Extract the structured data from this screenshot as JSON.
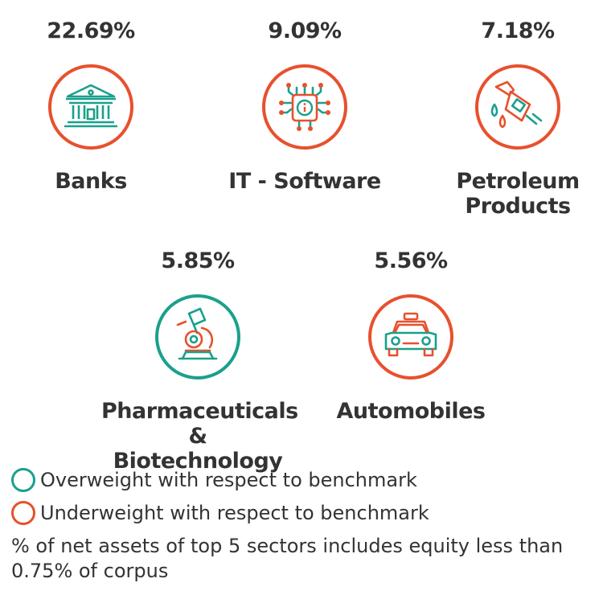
{
  "chart_data": {
    "type": "icon-stat",
    "unit": "%",
    "categories": [
      "Banks",
      "IT - Software",
      "Petroleum Products",
      "Pharmaceuticals & Biotechnology",
      "Automobiles"
    ],
    "values": [
      22.69,
      9.09,
      7.18,
      5.85,
      5.56
    ],
    "weighting": [
      "underweight",
      "underweight",
      "underweight",
      "overweight",
      "underweight"
    ]
  },
  "sectors": [
    {
      "pct": "22.69%",
      "name_lines": [
        "Banks"
      ],
      "icon": "bank-icon",
      "status": "underweight"
    },
    {
      "pct": "9.09%",
      "name_lines": [
        "IT - Software"
      ],
      "icon": "chip-icon",
      "status": "underweight"
    },
    {
      "pct": "7.18%",
      "name_lines": [
        "Petroleum",
        "Products"
      ],
      "icon": "fuel-nozzle-icon",
      "status": "underweight"
    },
    {
      "pct": "5.85%",
      "name_lines": [
        "Pharmaceuticals",
        "& Biotechnology"
      ],
      "icon": "microscope-icon",
      "status": "overweight"
    },
    {
      "pct": "5.56%",
      "name_lines": [
        "Automobiles"
      ],
      "icon": "car-icon",
      "status": "underweight"
    }
  ],
  "legend": {
    "overweight": {
      "label": "Overweight with respect to benchmark",
      "color": "#1aa08c"
    },
    "underweight": {
      "label": "Underweight with respect to benchmark",
      "color": "#e8502e"
    }
  },
  "footnote": "% of net assets of top 5 sectors includes equity less than 0.75% of corpus",
  "colors": {
    "green": "#1aa08c",
    "red": "#e8502e",
    "text": "#333333"
  }
}
